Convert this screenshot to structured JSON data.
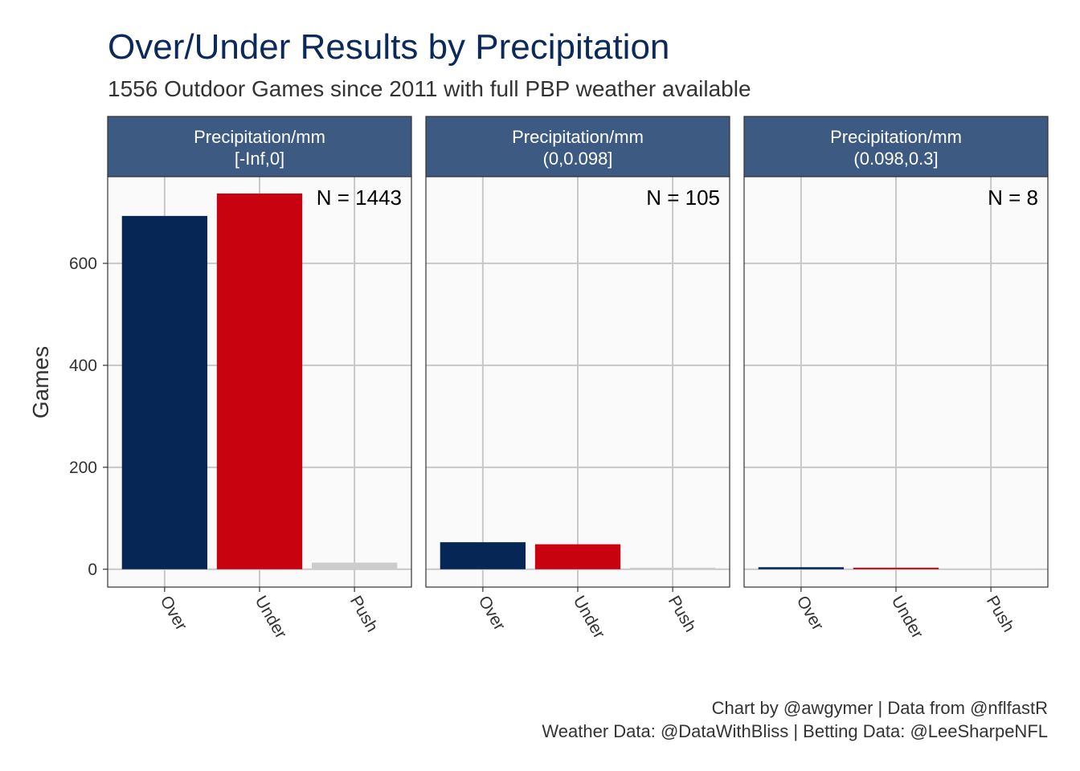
{
  "title": "Over/Under Results by Precipitation",
  "subtitle": "1556 Outdoor Games since 2011 with full PBP weather available",
  "caption": [
    "Chart by @awgymer | Data from @nflfastR",
    "Weather Data: @DataWithBliss | Betting Data: @LeeSharpeNFL"
  ],
  "colors": {
    "title": "#0b2a5b",
    "strip_bg": "#3c5a82",
    "strip_text": "#ffffff",
    "panel_bg": "#fafafa",
    "grid": "#c8c8c8",
    "Over": "#062655",
    "Under": "#c90210",
    "Push": "#cccccc"
  },
  "chart_data": {
    "type": "bar",
    "ylabel": "Games",
    "ylim": [
      -35,
      770
    ],
    "yticks": [
      0,
      200,
      400,
      600
    ],
    "categories": [
      "Over",
      "Under",
      "Push"
    ],
    "facets": [
      {
        "strip": [
          "Precipitation/mm",
          "[-Inf,0]"
        ],
        "n_label": "N = 1443",
        "values": [
          693,
          737,
          13
        ]
      },
      {
        "strip": [
          "Precipitation/mm",
          "(0,0.098]"
        ],
        "n_label": "N = 105",
        "values": [
          53,
          49,
          3
        ]
      },
      {
        "strip": [
          "Precipitation/mm",
          "(0.098,0.3]"
        ],
        "n_label": "N = 8",
        "values": [
          4,
          3,
          1
        ]
      }
    ]
  }
}
